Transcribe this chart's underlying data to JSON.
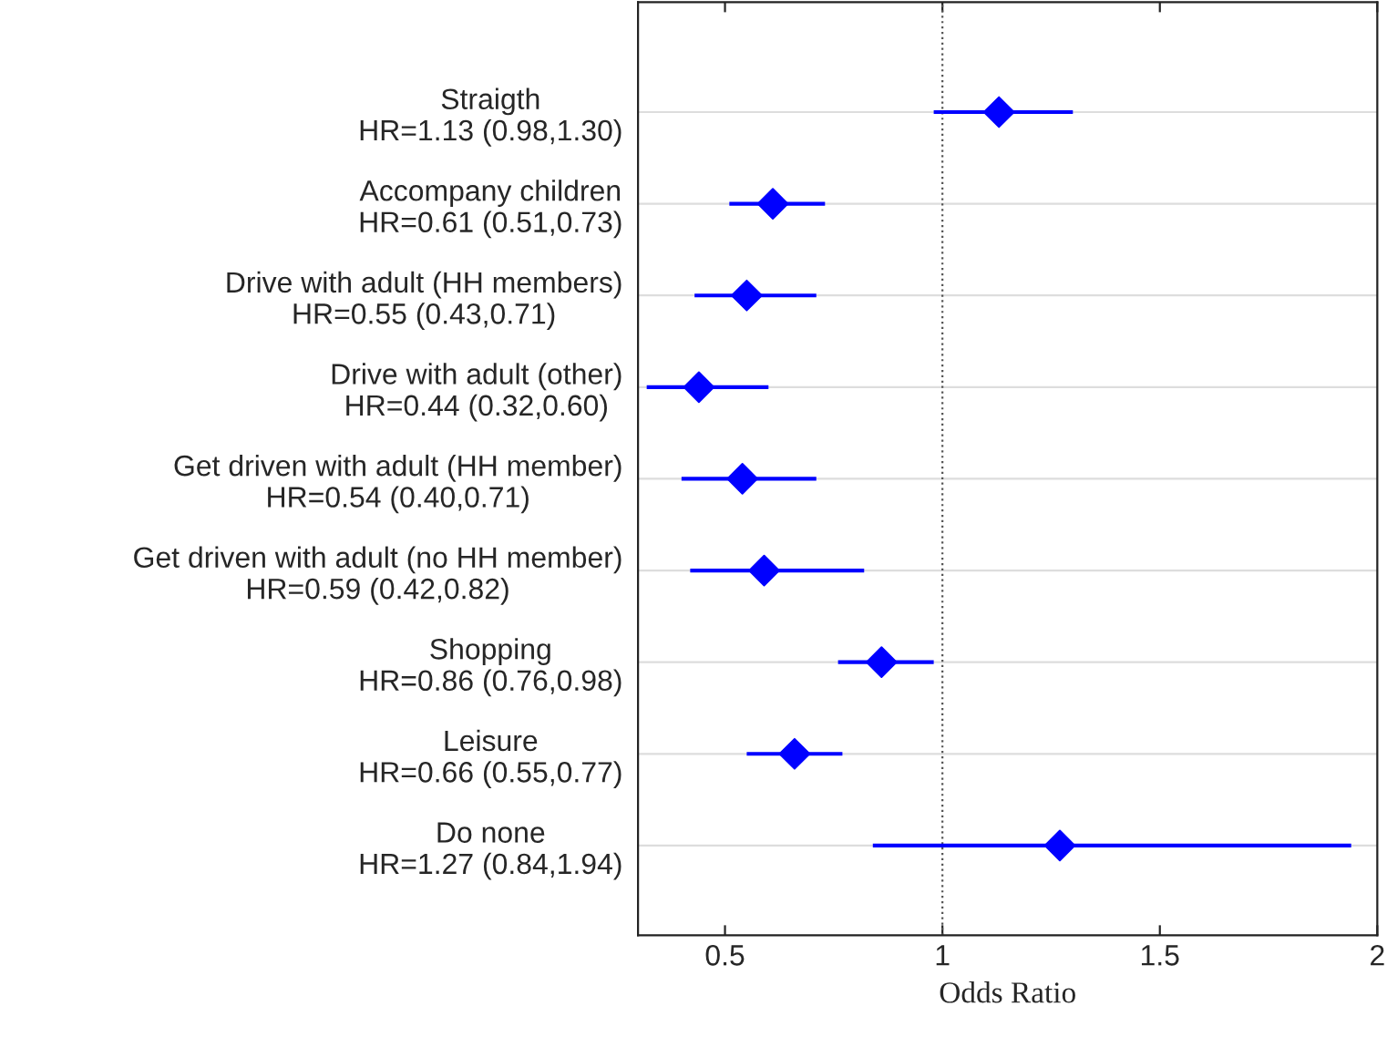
{
  "chart_data": {
    "type": "scatter",
    "orientation": "horizontal",
    "xlabel": "Odds Ratio",
    "categories": [
      "Straigth\nHR=1.13 (0.98,1.30)",
      "Accompany children\nHR=0.61 (0.51,0.73)",
      "Drive with adult (HH members)\nHR=0.55 (0.43,0.71)",
      "Drive with adult (other)\nHR=0.44 (0.32,0.60)",
      "Get driven with adult (HH member)\nHR=0.54 (0.40,0.71)",
      "Get driven with adult (no HH member)\nHR=0.59 (0.42,0.82)",
      "Shopping\nHR=0.86 (0.76,0.98)",
      "Leisure\nHR=0.66 (0.55,0.77)",
      "Do none\nHR=1.27 (0.84,1.94)"
    ],
    "values": [
      1.13,
      0.61,
      0.55,
      0.44,
      0.54,
      0.59,
      0.86,
      0.66,
      1.27
    ],
    "errors": [
      [
        0.98,
        1.3
      ],
      [
        0.51,
        0.73
      ],
      [
        0.43,
        0.71
      ],
      [
        0.32,
        0.6
      ],
      [
        0.4,
        0.71
      ],
      [
        0.42,
        0.82
      ],
      [
        0.76,
        0.98
      ],
      [
        0.55,
        0.77
      ],
      [
        0.84,
        1.94
      ]
    ],
    "color": "#0000ff",
    "marker": "diamond",
    "xlim": [
      0.3,
      2
    ],
    "xticks": [
      0.5,
      1,
      1.5,
      2
    ],
    "grid": "y",
    "ref_lines": [
      {
        "axis": "x",
        "value": 1,
        "color": "#555555",
        "line_style": "dotted"
      }
    ]
  }
}
